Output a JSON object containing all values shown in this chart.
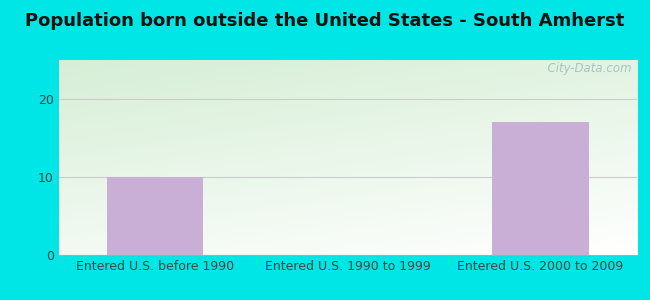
{
  "title": "Population born outside the United States - South Amherst",
  "categories": [
    "Entered U.S. before 1990",
    "Entered U.S. 1990 to 1999",
    "Entered U.S. 2000 to 2009"
  ],
  "values": [
    10,
    0,
    17
  ],
  "bar_color": "#c9aed6",
  "bar_width": 0.5,
  "ylim": [
    0,
    25
  ],
  "yticks": [
    0,
    10,
    20
  ],
  "background_outer": "#00e5e5",
  "gradient_top_left": "#d6eed6",
  "gradient_bottom_right": "#ffffff",
  "grid_color": "#cccccc",
  "title_fontsize": 13,
  "tick_fontsize": 9,
  "watermark": "  City-Data.com"
}
